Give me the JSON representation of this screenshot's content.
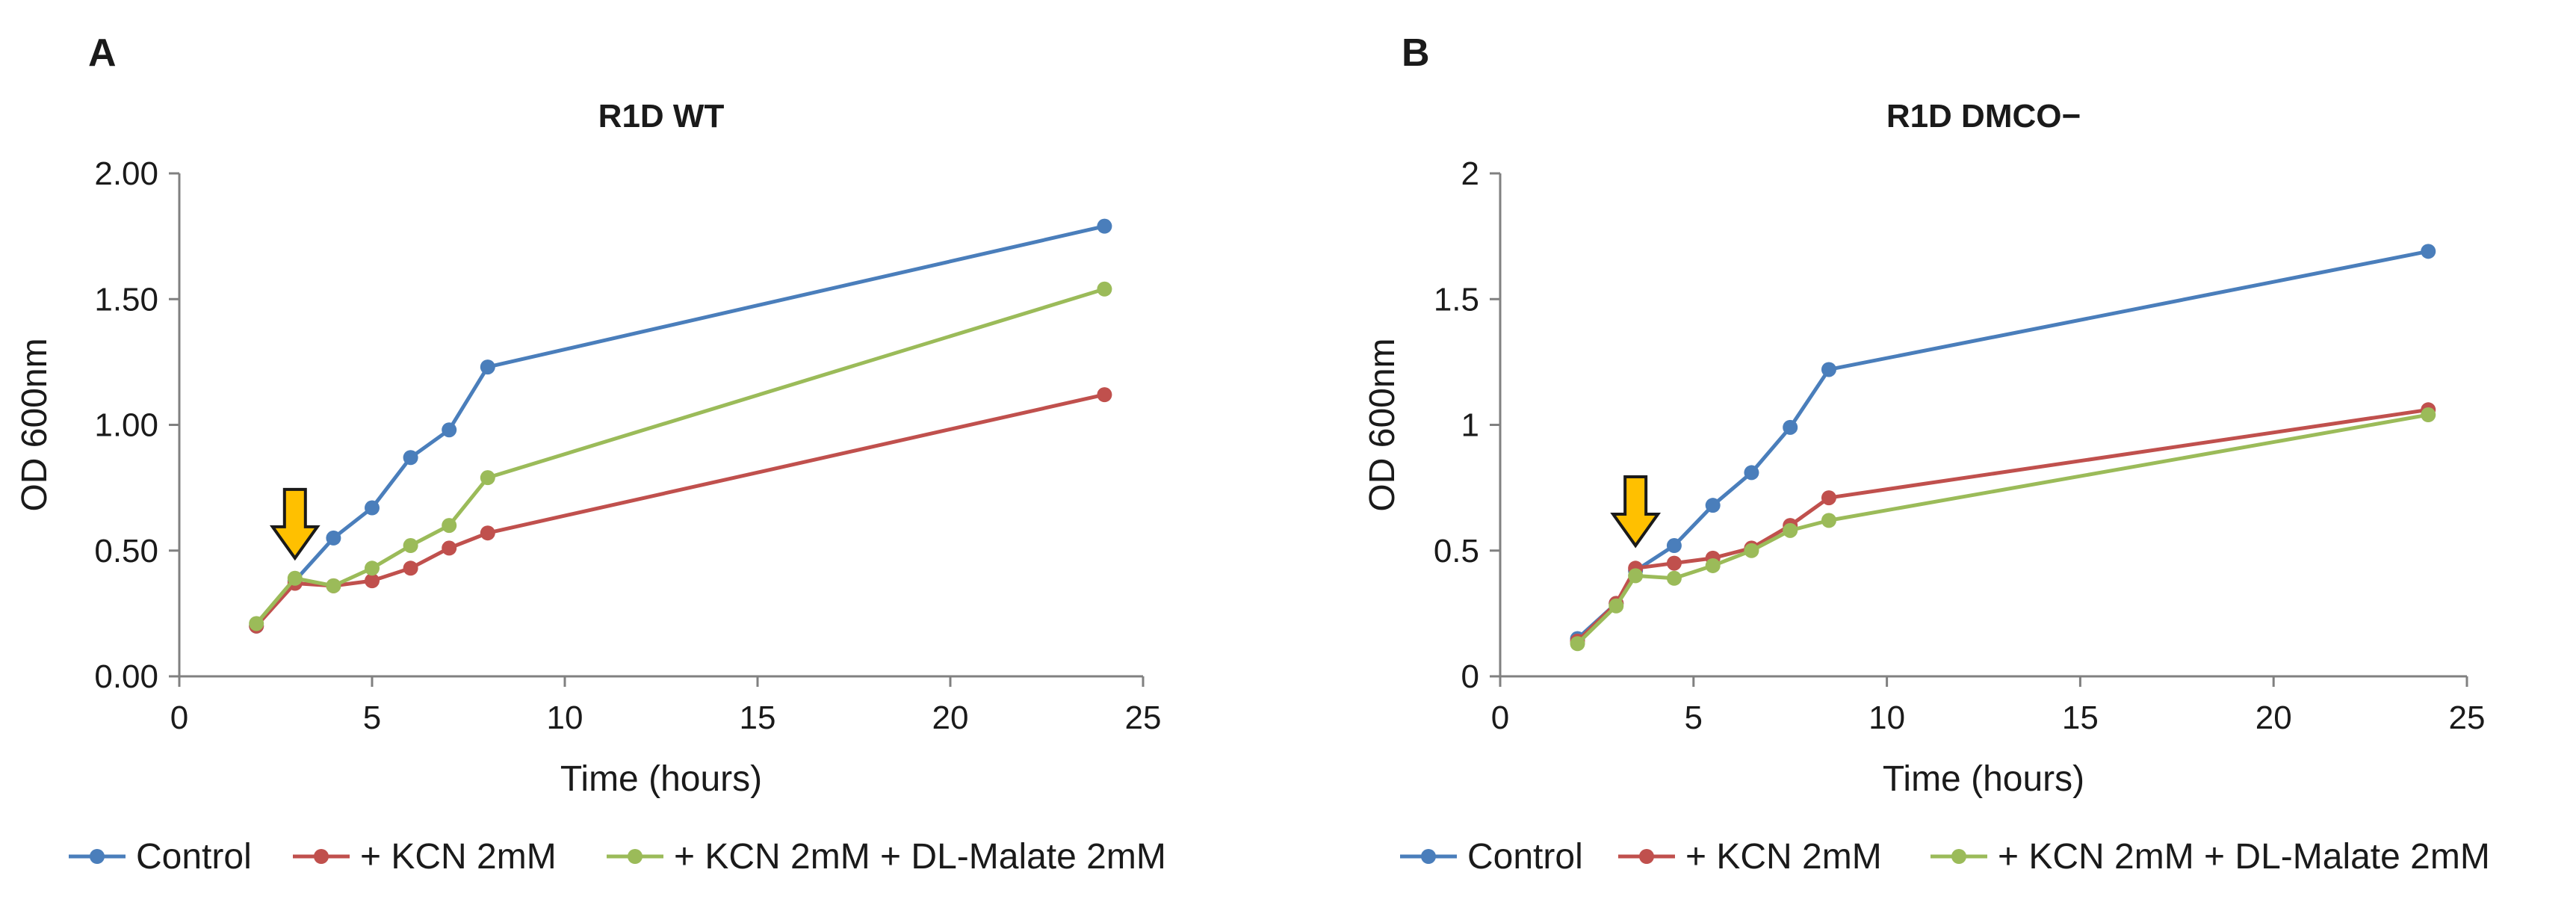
{
  "chart_data": [
    {
      "panel": "A",
      "type": "line",
      "title": "R1D WT",
      "xlabel": "Time (hours)",
      "ylabel": "OD 600nm",
      "xlim": [
        0,
        25
      ],
      "ylim": [
        0,
        2
      ],
      "xticks": [
        0,
        5,
        10,
        15,
        20,
        25
      ],
      "xtick_labels": [
        "0",
        "5",
        "10",
        "15",
        "20",
        "25"
      ],
      "yticks": [
        0,
        0.5,
        1,
        1.5,
        2
      ],
      "ytick_labels": [
        "0.00",
        "0.50",
        "1.00",
        "1.50",
        "2.00"
      ],
      "arrow_at": {
        "x": 3,
        "y_tip": 0.47
      },
      "legend_position": "bottom",
      "series": [
        {
          "name": "Control",
          "color": "#4a7ebb",
          "x": [
            2,
            3,
            4,
            5,
            6,
            7,
            8,
            24
          ],
          "y": [
            0.2,
            0.38,
            0.55,
            0.67,
            0.87,
            0.98,
            1.23,
            1.79
          ]
        },
        {
          "name": "+ KCN 2mM",
          "color": "#c0504d",
          "x": [
            2,
            3,
            4,
            5,
            6,
            7,
            8,
            24
          ],
          "y": [
            0.2,
            0.37,
            0.36,
            0.38,
            0.43,
            0.51,
            0.57,
            1.12
          ]
        },
        {
          "name": "+ KCN 2mM + DL-Malate 2mM",
          "color": "#9bbb59",
          "x": [
            2,
            3,
            4,
            5,
            6,
            7,
            8,
            24
          ],
          "y": [
            0.21,
            0.39,
            0.36,
            0.43,
            0.52,
            0.6,
            0.79,
            1.54
          ]
        }
      ]
    },
    {
      "panel": "B",
      "type": "line",
      "title": "R1D DMCO−",
      "xlabel": "Time (hours)",
      "ylabel": "OD 600nm",
      "xlim": [
        0,
        25
      ],
      "ylim": [
        0,
        2
      ],
      "xticks": [
        0,
        5,
        10,
        15,
        20,
        25
      ],
      "xtick_labels": [
        "0",
        "5",
        "10",
        "15",
        "20",
        "25"
      ],
      "yticks": [
        0,
        0.5,
        1,
        1.5,
        2
      ],
      "ytick_labels": [
        "0",
        "0.5",
        "1",
        "1.5",
        "2"
      ],
      "arrow_at": {
        "x": 3.5,
        "y_tip": 0.52
      },
      "legend_position": "bottom",
      "series": [
        {
          "name": "Control",
          "color": "#4a7ebb",
          "x": [
            2,
            3,
            3.5,
            4.5,
            5.5,
            6.5,
            7.5,
            8.5,
            24
          ],
          "y": [
            0.15,
            0.29,
            0.42,
            0.52,
            0.68,
            0.81,
            0.99,
            1.22,
            1.69
          ]
        },
        {
          "name": "+ KCN 2mM",
          "color": "#c0504d",
          "x": [
            2,
            3,
            3.5,
            4.5,
            5.5,
            6.5,
            7.5,
            8.5,
            24
          ],
          "y": [
            0.14,
            0.29,
            0.43,
            0.45,
            0.47,
            0.51,
            0.6,
            0.71,
            1.06
          ]
        },
        {
          "name": "+ KCN 2mM + DL-Malate 2mM",
          "color": "#9bbb59",
          "x": [
            2,
            3,
            3.5,
            4.5,
            5.5,
            6.5,
            7.5,
            8.5,
            24
          ],
          "y": [
            0.13,
            0.28,
            0.4,
            0.39,
            0.44,
            0.5,
            0.58,
            0.62,
            1.04
          ]
        }
      ]
    }
  ]
}
